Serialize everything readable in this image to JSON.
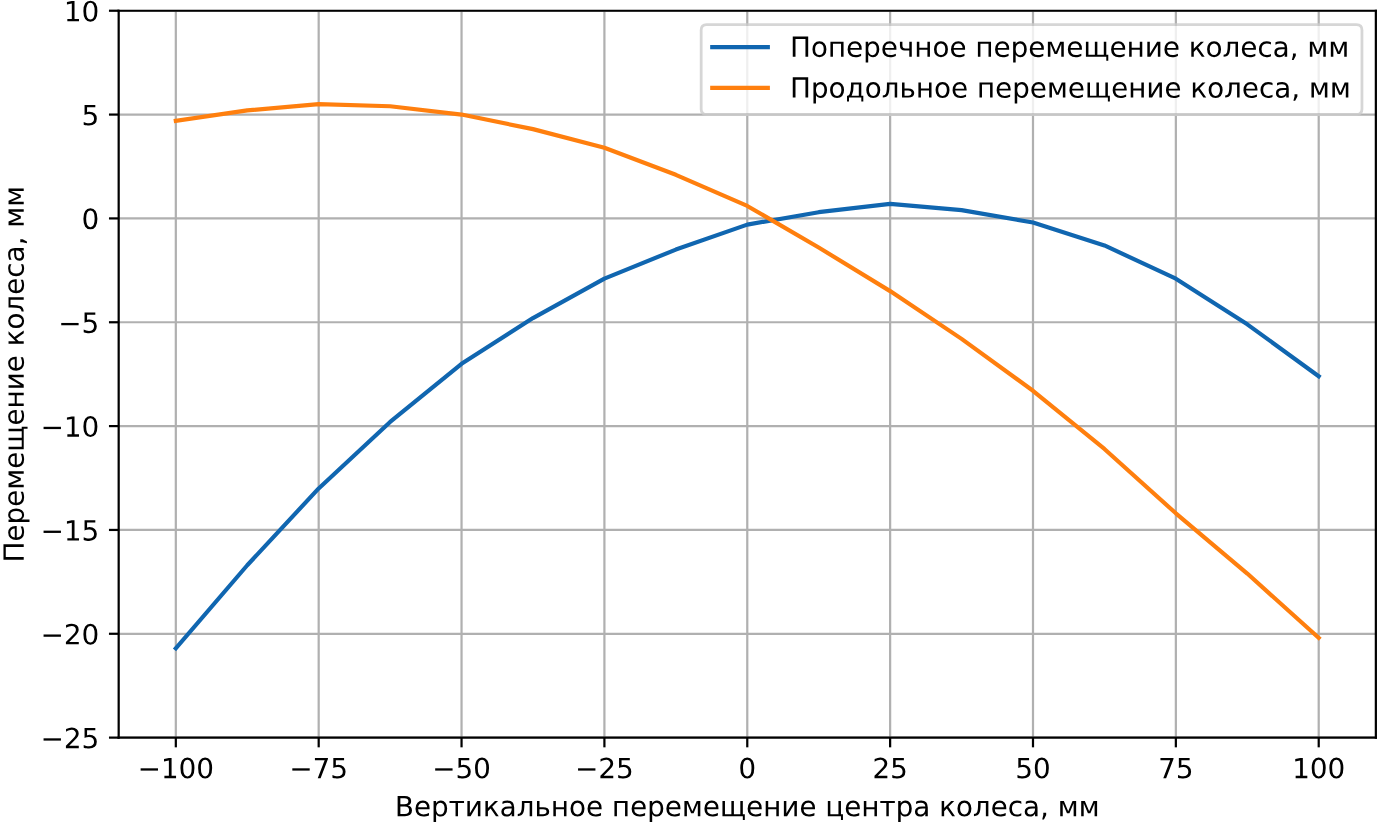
{
  "chart_data": {
    "type": "line",
    "xlabel": "Вертикальное перемещение центра колеса, мм",
    "ylabel": "Перемещение колеса, мм",
    "x": [
      -100,
      -87.5,
      -75,
      -62.5,
      -50,
      -37.5,
      -25,
      -12.5,
      0,
      12.5,
      25,
      37.5,
      50,
      62.5,
      75,
      87.5,
      100
    ],
    "series": [
      {
        "name": "Поперечное перемещение колеса, мм",
        "color": "#1066b0",
        "values": [
          -20.7,
          -16.7,
          -13.0,
          -9.8,
          -7.0,
          -4.8,
          -2.9,
          -1.5,
          -0.3,
          0.3,
          0.7,
          0.4,
          -0.2,
          -1.3,
          -2.9,
          -5.1,
          -7.6
        ]
      },
      {
        "name": "Продольное перемещение колеса, мм",
        "color": "#ff7f0e",
        "values": [
          4.7,
          5.2,
          5.5,
          5.4,
          5.0,
          4.3,
          3.4,
          2.1,
          0.6,
          -1.4,
          -3.5,
          -5.8,
          -8.3,
          -11.1,
          -14.2,
          -17.1,
          -20.2
        ]
      }
    ],
    "xlim": [
      -110,
      110
    ],
    "ylim": [
      -25,
      10
    ],
    "xticks": [
      {
        "value": -100,
        "label": "−100"
      },
      {
        "value": -75,
        "label": "−75"
      },
      {
        "value": -50,
        "label": "−50"
      },
      {
        "value": -25,
        "label": "−25"
      },
      0,
      25,
      50,
      75,
      100
    ],
    "yticks": [
      {
        "value": -25,
        "label": "−25"
      },
      {
        "value": -20,
        "label": "−20"
      },
      {
        "value": -15,
        "label": "−15"
      },
      {
        "value": -10,
        "label": "−10"
      },
      {
        "value": -5,
        "label": "−5"
      },
      0,
      5,
      10
    ],
    "grid": true,
    "legend": "top right"
  }
}
